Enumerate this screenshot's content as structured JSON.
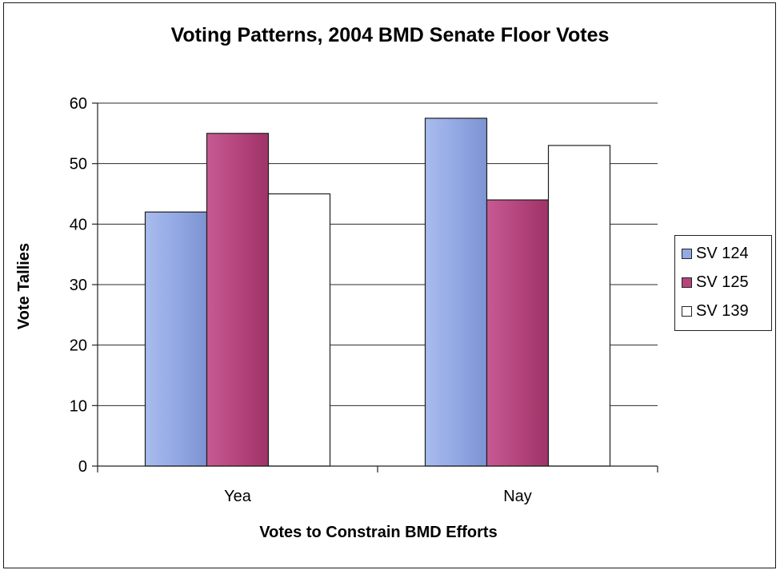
{
  "chart_data": {
    "type": "bar",
    "title": "Voting Patterns, 2004 BMD Senate Floor Votes",
    "xlabel": "Votes to Constrain BMD Efforts",
    "ylabel": "Vote Tallies",
    "categories": [
      "Yea",
      "Nay"
    ],
    "series": [
      {
        "name": "SV 124",
        "values": [
          42,
          57.5
        ],
        "color": "#93a9e4"
      },
      {
        "name": "SV 125",
        "values": [
          55,
          44
        ],
        "color": "#b5457d"
      },
      {
        "name": "SV 139",
        "values": [
          45,
          53
        ],
        "color": "#ffffff"
      }
    ],
    "ylim": [
      0,
      60
    ],
    "yticks": [
      "0",
      "10",
      "20",
      "30",
      "40",
      "50",
      "60"
    ],
    "grid": true,
    "legend_position": "right"
  }
}
